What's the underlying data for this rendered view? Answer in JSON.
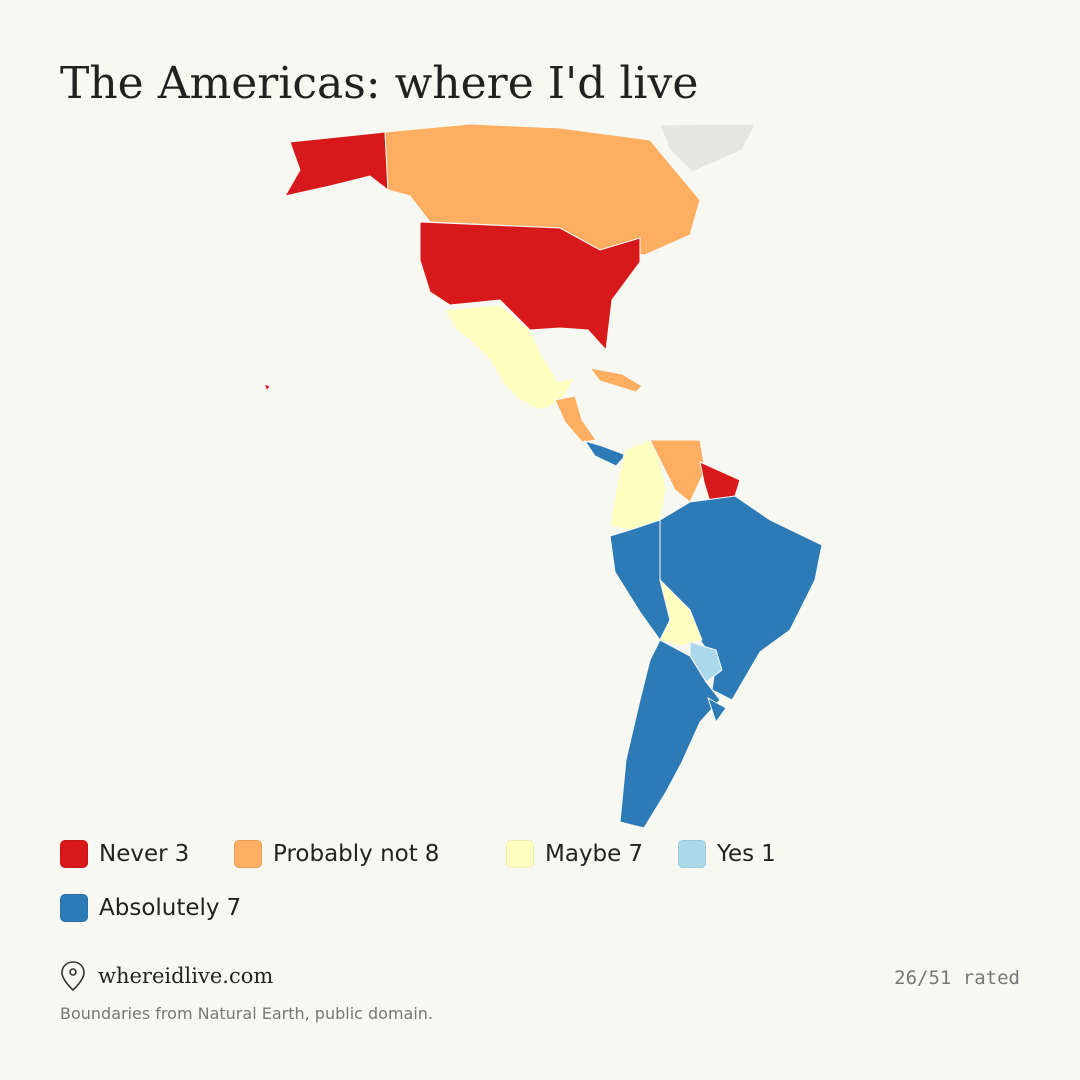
{
  "title": "The Americas: where I'd live",
  "legend": [
    {
      "label": "Never",
      "count": 3,
      "color": "#d7191c"
    },
    {
      "label": "Probably not",
      "count": 8,
      "color": "#fdae61"
    },
    {
      "label": "Maybe",
      "count": 7,
      "color": "#ffffbf"
    },
    {
      "label": "Yes",
      "count": 1,
      "color": "#abd9e9"
    },
    {
      "label": "Absolutely",
      "count": 7,
      "color": "#2c7bb6"
    }
  ],
  "footer": {
    "site": "whereidlive.com",
    "progress": "26/51 rated",
    "note": "Boundaries from Natural Earth, public domain."
  }
}
